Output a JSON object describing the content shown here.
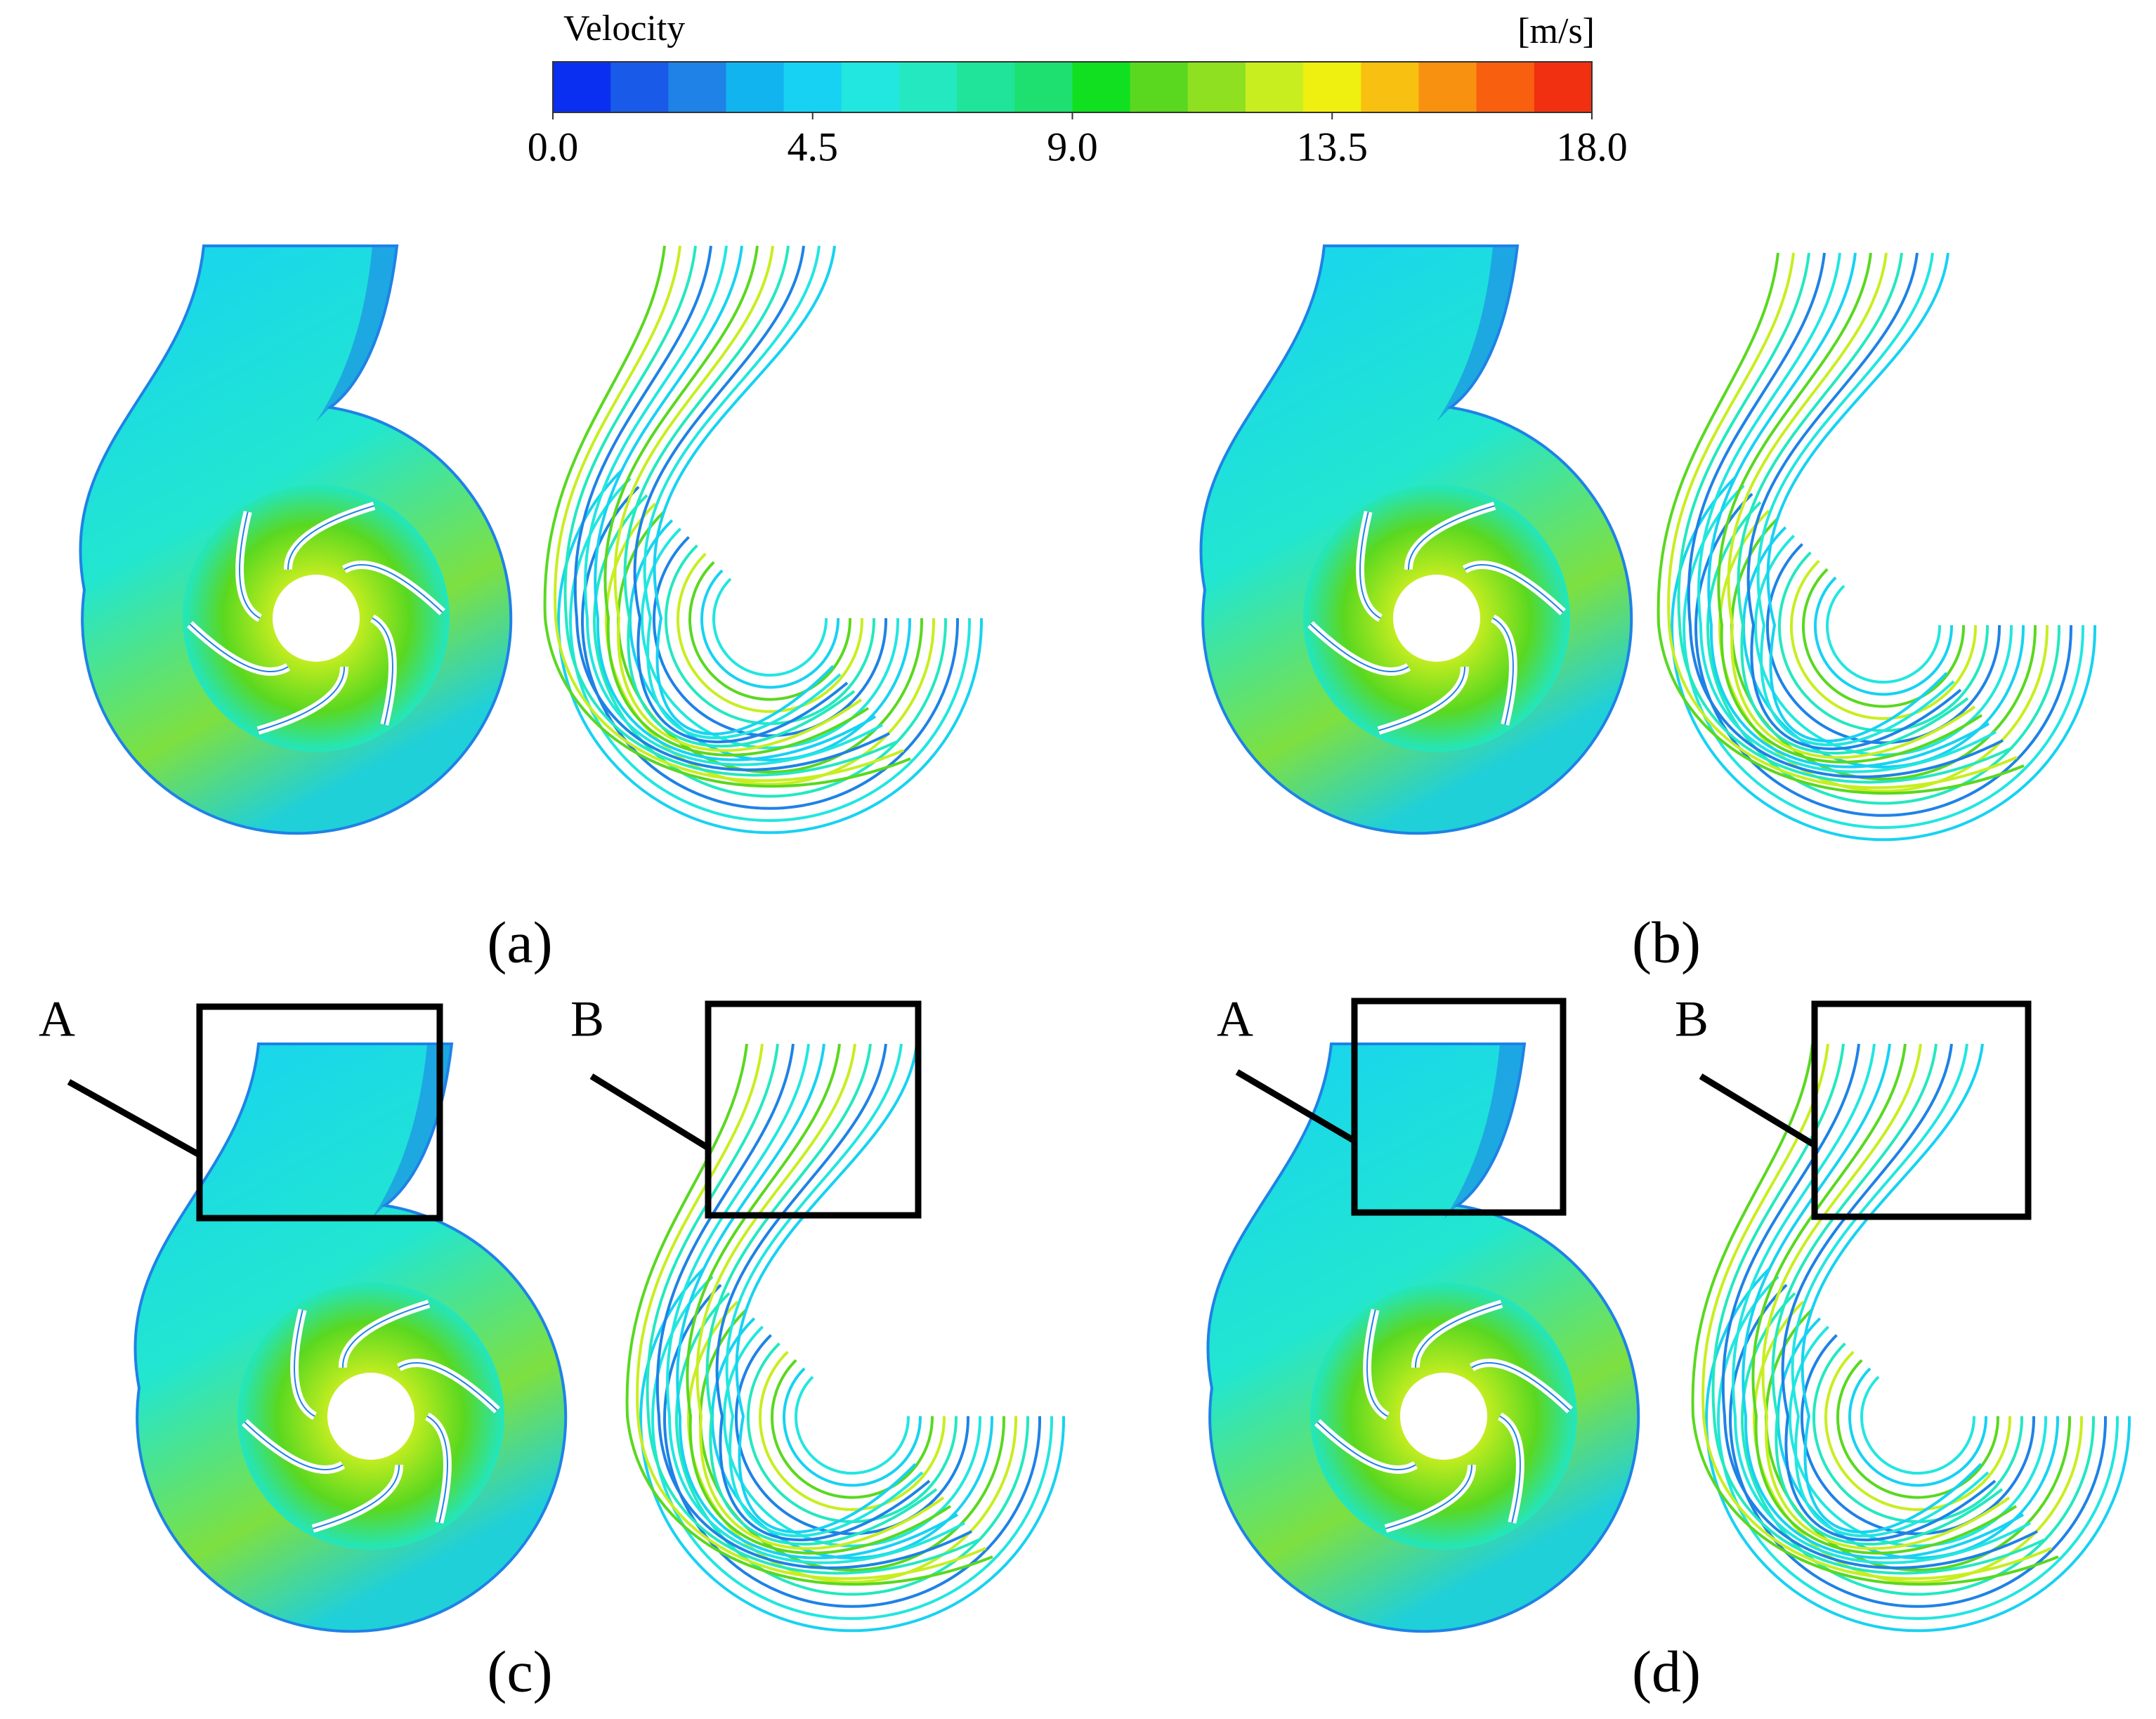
{
  "colorbar": {
    "title": "Velocity",
    "unit": "[m/s]",
    "colors": [
      "#0b2ff0",
      "#1a5ae8",
      "#1e82e6",
      "#12b4f0",
      "#17d2f2",
      "#22e6e0",
      "#24e8c0",
      "#20e49a",
      "#1ee070",
      "#10e020",
      "#5ad820",
      "#8ee020",
      "#c8ee20",
      "#f0f010",
      "#f8c010",
      "#f89010",
      "#f86010",
      "#f03010"
    ],
    "ticks": [
      {
        "value": 0,
        "label": "0.0"
      },
      4.5,
      {
        "value": 9,
        "label": "9.0"
      },
      13.5,
      {
        "value": 18,
        "label": "18.0"
      }
    ]
  },
  "panels": [
    {
      "label": "(a)",
      "callouts": []
    },
    {
      "label": "(b)",
      "callouts": []
    },
    {
      "label": "(c)",
      "callouts": [
        "A",
        "B"
      ]
    },
    {
      "label": "(d)",
      "callouts": [
        "A",
        "B"
      ]
    }
  ]
}
